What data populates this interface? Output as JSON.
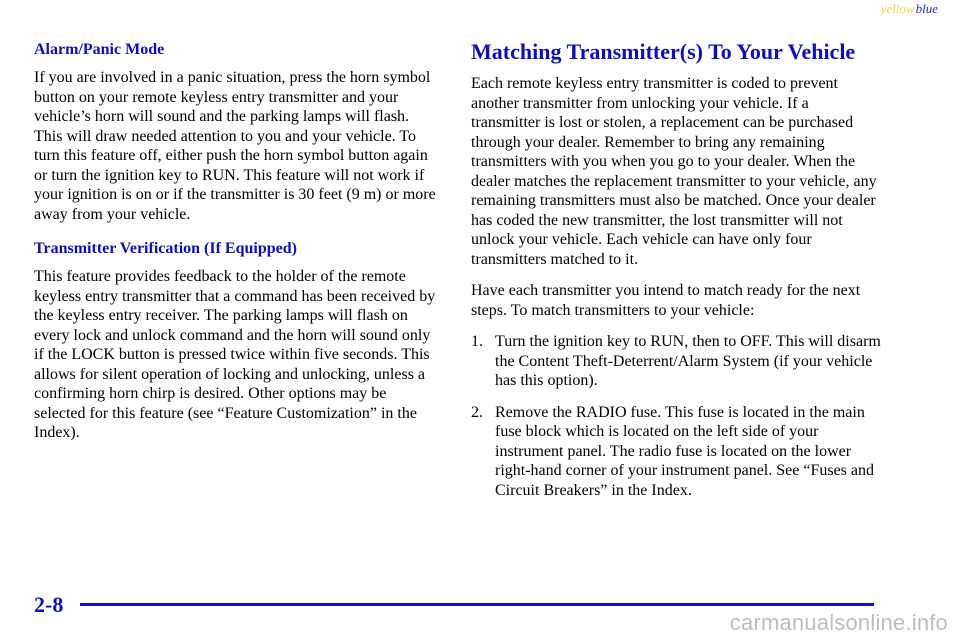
{
  "corner_tag": {
    "yellow": "yellow",
    "blue": "blue"
  },
  "left_column": {
    "alarm_heading": "Alarm/Panic Mode",
    "alarm_text": "If you are involved in a panic situation, press the horn symbol button on your remote keyless entry transmitter and your vehicle’s horn will sound and the parking lamps will flash. This will draw needed attention to you and your vehicle. To turn this feature off, either push the horn symbol button again or turn the ignition key to RUN. This feature will not work if your ignition is on or if the transmitter is 30 feet (9 m) or more away from your vehicle.",
    "verification_heading": "Transmitter Verification (If Equipped)",
    "verification_text": "This feature provides feedback to the holder of the remote keyless entry transmitter that a command has been received by the keyless entry receiver. The parking lamps will flash on every lock and unlock command and the horn will sound only if the LOCK button is pressed twice within five seconds. This allows for silent operation of locking and unlocking, unless a confirming horn chirp is desired. Other options may be selected for this feature (see “Feature Customization” in the Index)."
  },
  "right_column": {
    "heading": "Matching Transmitter(s) To Your Vehicle",
    "intro_text": "Each remote keyless entry transmitter is coded to prevent another transmitter from unlocking your vehicle. If a transmitter is lost or stolen, a replacement can be purchased through your dealer. Remember to bring any remaining transmitters with you when you go to your dealer. When the dealer matches the replacement transmitter to your vehicle, any remaining transmitters must also be matched. Once your dealer has coded the new transmitter, the lost transmitter will not unlock your vehicle. Each vehicle can have only four transmitters matched to it.",
    "steps_intro": "Have each transmitter you intend to match ready for the next steps. To match transmitters to your vehicle:",
    "steps": [
      {
        "number": "1.",
        "text": "Turn the ignition key to RUN, then to OFF. This will disarm the Content Theft‑Deterrent/Alarm System (if your vehicle has this option)."
      },
      {
        "number": "2.",
        "text": "Remove the RADIO fuse. This fuse is located in the main fuse block which is located on the left side of your instrument panel. The radio fuse is located on the lower right‑hand corner of your instrument panel. See “Fuses and Circuit Breakers” in the Index."
      }
    ]
  },
  "footer": {
    "page_number": "2-8"
  },
  "watermark": "carmanualsonline.info",
  "colors": {
    "heading_blue": "#0d0dc8",
    "corner_yellow": "#e8d84a",
    "corner_blue": "#1e2bd6",
    "watermark_gray": "#bdbdbd"
  }
}
